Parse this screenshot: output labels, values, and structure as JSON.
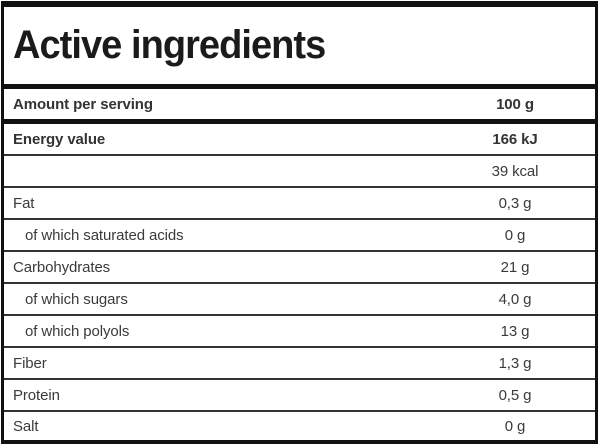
{
  "nutrition_table": {
    "title": "Active ingredients",
    "amount_row": {
      "label": "Amount per serving",
      "value": "100 g"
    },
    "rows": [
      {
        "label": "Energy value",
        "value": "166 kJ",
        "bold": true,
        "indent": false
      },
      {
        "label": "",
        "value": "39 kcal",
        "bold": false,
        "indent": false
      },
      {
        "label": "Fat",
        "value": "0,3 g",
        "bold": false,
        "indent": false
      },
      {
        "label": "of which saturated acids",
        "value": "0 g",
        "bold": false,
        "indent": true
      },
      {
        "label": "Carbohydrates",
        "value": "21 g",
        "bold": false,
        "indent": false
      },
      {
        "label": "of which sugars",
        "value": "4,0 g",
        "bold": false,
        "indent": true
      },
      {
        "label": "of which polyols",
        "value": "13 g",
        "bold": false,
        "indent": true
      },
      {
        "label": "Fiber",
        "value": "1,3 g",
        "bold": false,
        "indent": false
      },
      {
        "label": "Protein",
        "value": "0,5 g",
        "bold": false,
        "indent": false
      },
      {
        "label": "Salt",
        "value": "0 g",
        "bold": false,
        "indent": false
      }
    ],
    "colors": {
      "frame_border": "#111111",
      "separator": "#333333",
      "text": "#3a3a3a"
    }
  }
}
